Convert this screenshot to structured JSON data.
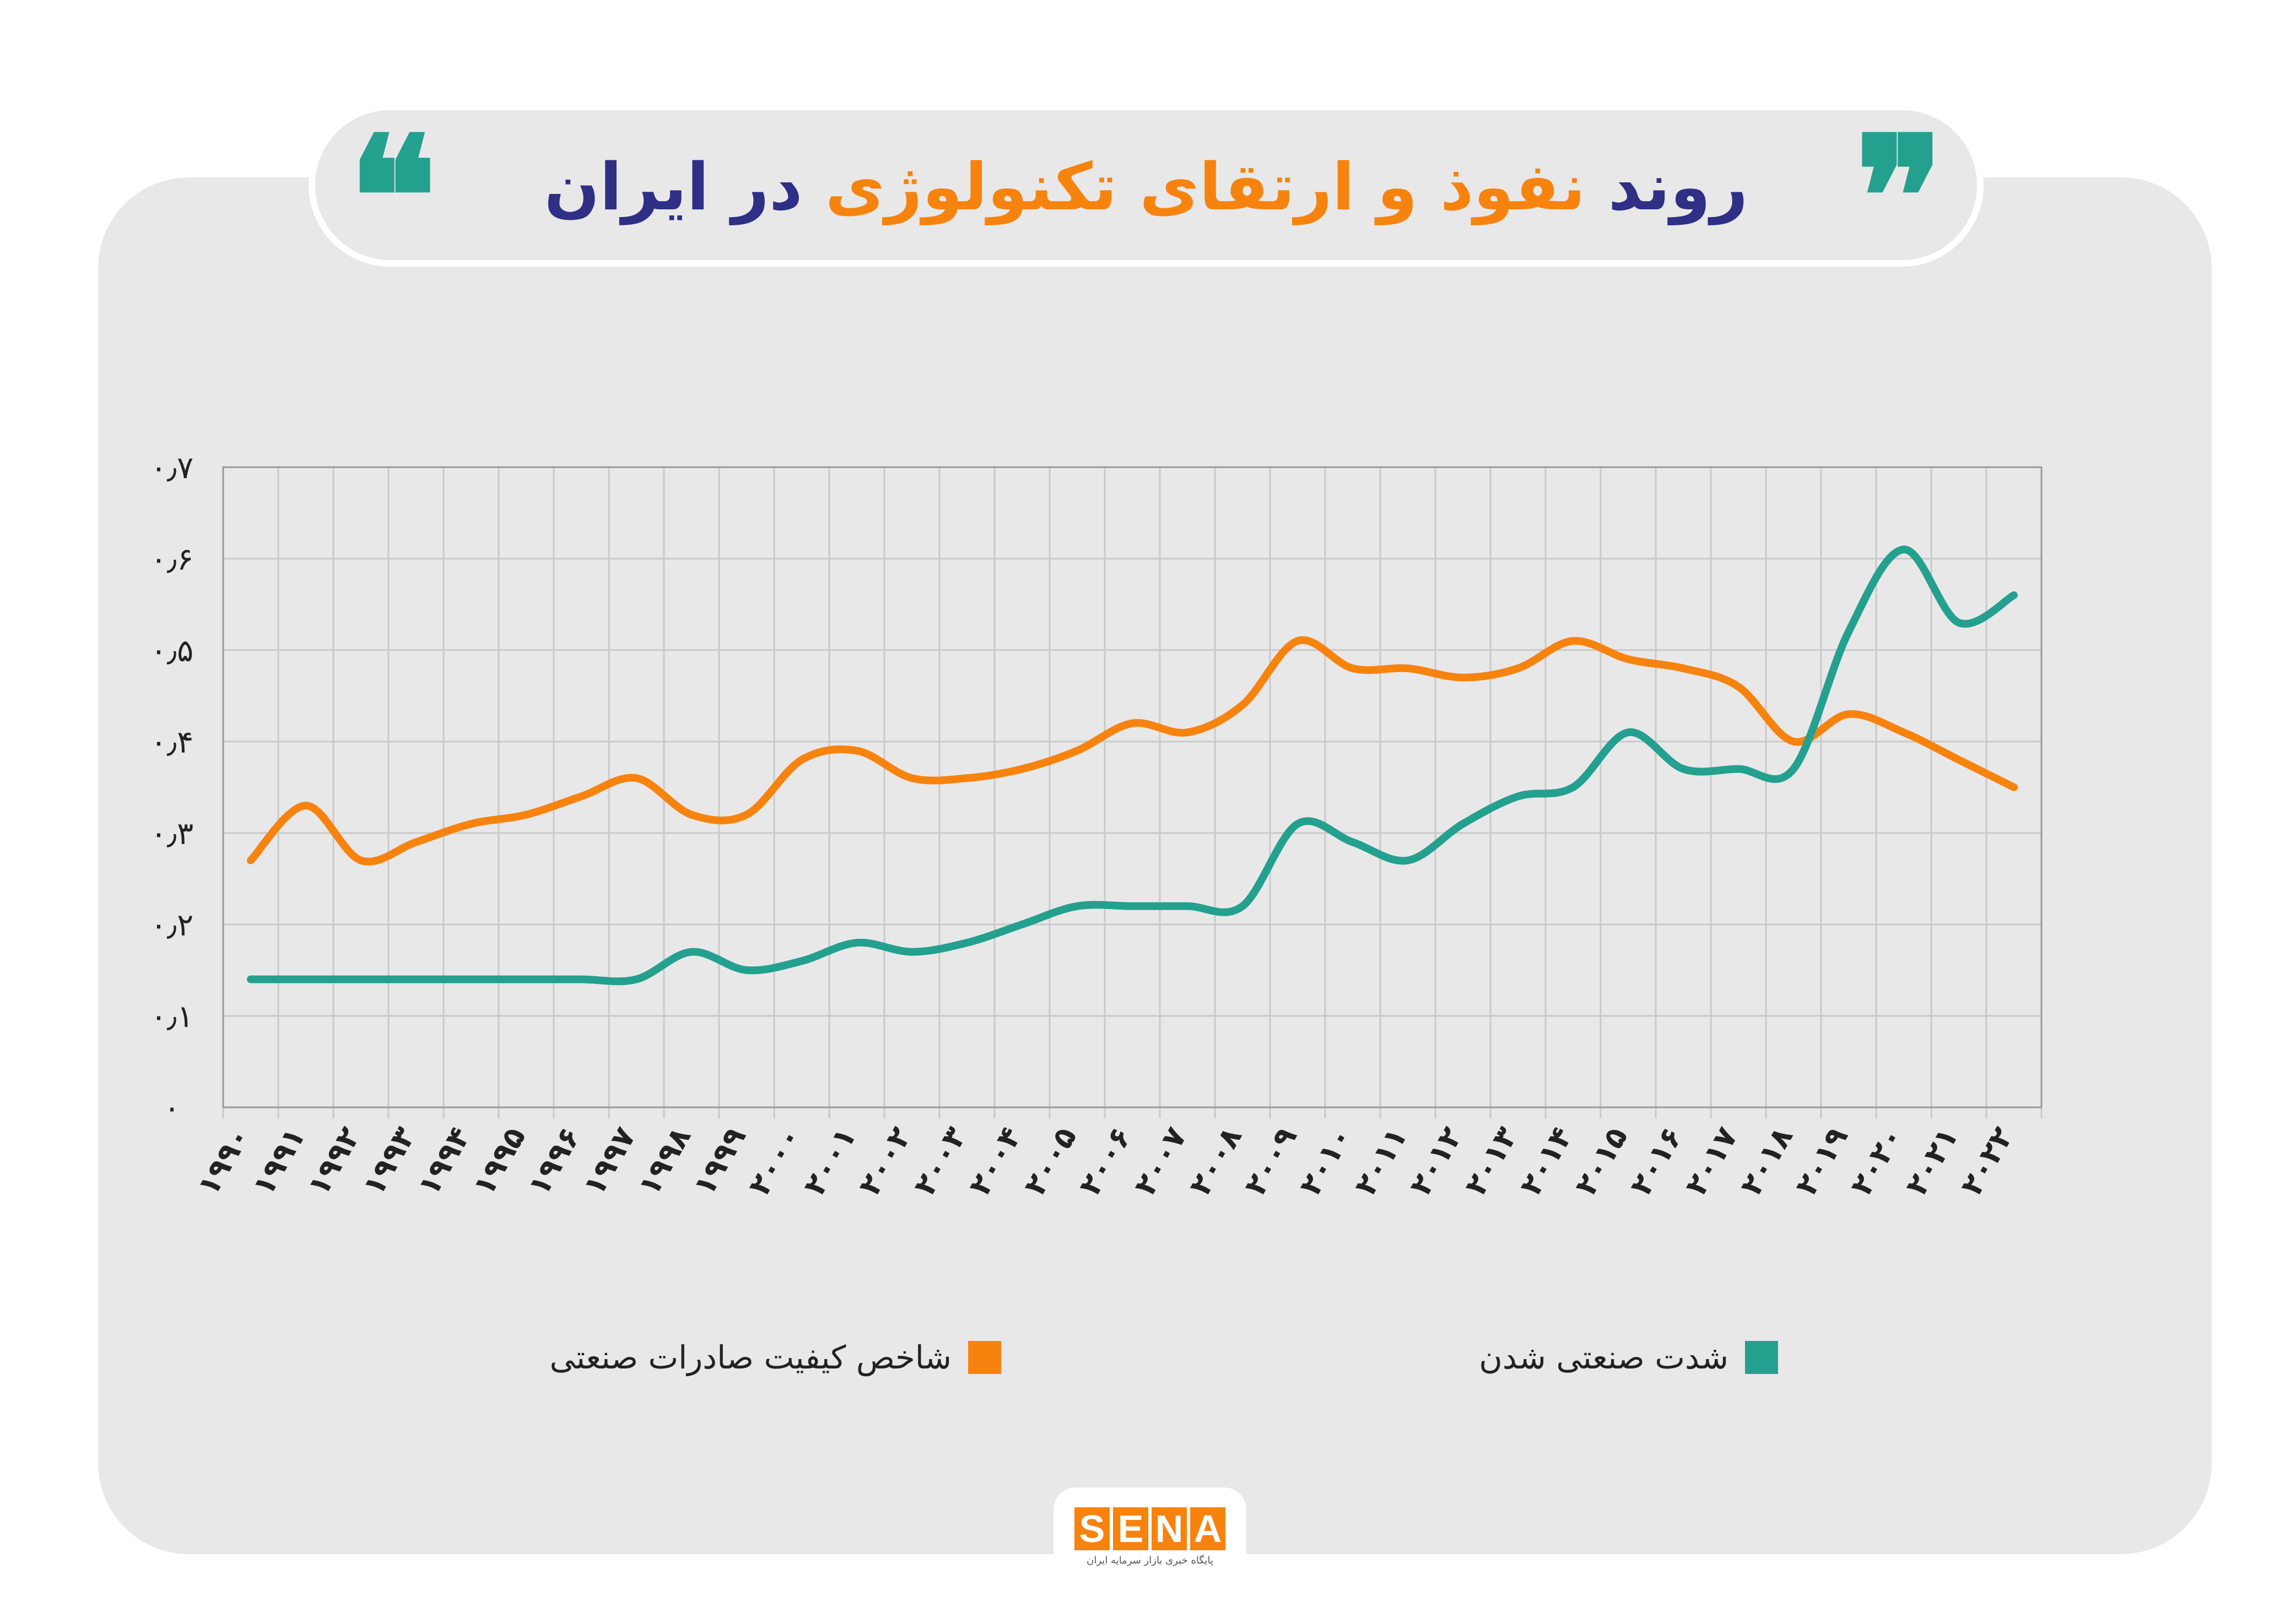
{
  "title": {
    "part1": "روند",
    "part2": "نفوذ و ارتقای تکنولوژی",
    "part3": "در ایران",
    "quote_open": "❝",
    "quote_close": "❞"
  },
  "colors": {
    "orange": "#f7830f",
    "teal": "#24a08f",
    "navy": "#2f2f86",
    "grid": "#c9c9c9",
    "background": "#e9e8e9"
  },
  "chart_data": {
    "type": "line",
    "title": "روند نفوذ و ارتقای تکنولوژی در ایران",
    "xlabel": "",
    "ylabel": "",
    "ylim": [
      0,
      0.7
    ],
    "grid": true,
    "legend_position": "bottom",
    "x": [
      1990,
      1991,
      1992,
      1993,
      1994,
      1995,
      1996,
      1997,
      1998,
      1999,
      2000,
      2001,
      2002,
      2003,
      2004,
      2005,
      2006,
      2007,
      2008,
      2009,
      2010,
      2011,
      2012,
      2013,
      2014,
      2015,
      2016,
      2017,
      2018,
      2019,
      2020,
      2021,
      2022
    ],
    "x_tick_labels": [
      "۱۹۹۰",
      "۱۹۹۱",
      "۱۹۹۲",
      "۱۹۹۳",
      "۱۹۹۴",
      "۱۹۹۵",
      "۱۹۹۶",
      "۱۹۹۷",
      "۱۹۹۸",
      "۱۹۹۹",
      "۲۰۰۰",
      "۲۰۰۱",
      "۲۰۰۲",
      "۲۰۰۳",
      "۲۰۰۴",
      "۲۰۰۵",
      "۲۰۰۶",
      "۲۰۰۷",
      "۲۰۰۸",
      "۲۰۰۹",
      "۲۰۱۰",
      "۲۰۱۱",
      "۲۰۱۲",
      "۲۰۱۳",
      "۲۰۱۴",
      "۲۰۱۵",
      "۲۰۱۶",
      "۲۰۱۷",
      "۲۰۱۸",
      "۲۰۱۹",
      "۲۰۲۰",
      "۲۰۲۱",
      "۲۰۲۲"
    ],
    "y_ticks": [
      0,
      0.1,
      0.2,
      0.3,
      0.4,
      0.5,
      0.6,
      0.7
    ],
    "y_tick_labels": [
      "۰",
      "۰٫۱",
      "۰٫۲",
      "۰٫۳",
      "۰٫۴",
      "۰٫۵",
      "۰٫۶",
      "۰٫۷"
    ],
    "series": [
      {
        "name": "شاخص کیفیت صادرات صنعتی",
        "color": "#f7830f",
        "values": [
          0.27,
          0.33,
          0.27,
          0.29,
          0.31,
          0.32,
          0.34,
          0.36,
          0.32,
          0.32,
          0.38,
          0.39,
          0.36,
          0.36,
          0.37,
          0.39,
          0.42,
          0.41,
          0.44,
          0.51,
          0.48,
          0.48,
          0.47,
          0.48,
          0.51,
          0.49,
          0.48,
          0.46,
          0.4,
          0.43,
          0.41,
          0.38,
          0.35
        ]
      },
      {
        "name": "شدت صنعتی شدن",
        "color": "#24a08f",
        "values": [
          0.14,
          0.14,
          0.14,
          0.14,
          0.14,
          0.14,
          0.14,
          0.14,
          0.17,
          0.15,
          0.16,
          0.18,
          0.17,
          0.18,
          0.2,
          0.22,
          0.22,
          0.22,
          0.22,
          0.31,
          0.29,
          0.27,
          0.31,
          0.34,
          0.35,
          0.41,
          0.37,
          0.37,
          0.37,
          0.52,
          0.61,
          0.53,
          0.56
        ]
      }
    ]
  },
  "logo": {
    "letters": [
      "S",
      "E",
      "N",
      "A"
    ],
    "subtitle": "پایگاه خبری بازار سرمایه ایران"
  }
}
